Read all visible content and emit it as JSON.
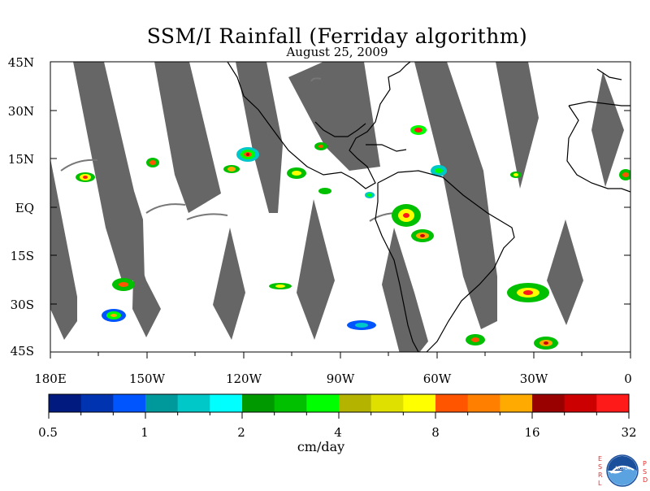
{
  "title": "SSM/I Rainfall (Ferriday algorithm)",
  "date": "August 25, 2009",
  "lat_labels": [
    "45N",
    "30N",
    "15N",
    "EQ",
    "15S",
    "30S",
    "45S"
  ],
  "lon_labels": [
    "180E",
    "150W",
    "120W",
    "90W",
    "60W",
    "30W",
    "0"
  ],
  "colorbar": {
    "tick_labels": [
      "0.5",
      "1",
      "2",
      "4",
      "8",
      "16",
      "32"
    ],
    "unit": "cm/day",
    "colors": [
      "#001a80",
      "#0033b0",
      "#0055ff",
      "#00999b",
      "#00c8c8",
      "#00ffff",
      "#009900",
      "#00c000",
      "#00ff00",
      "#b3b300",
      "#e0e000",
      "#ffff00",
      "#ff5500",
      "#ff7f00",
      "#ffaa00",
      "#990000",
      "#cc0000",
      "#ff1a1a"
    ]
  },
  "map_colors": {
    "swath_gap": "#666666",
    "coast": "#000000"
  },
  "logo": {
    "name": "noaa-logo",
    "left_letters": [
      "E",
      "S",
      "R",
      "L"
    ],
    "right_letters": [
      "P",
      "S",
      "D"
    ]
  }
}
